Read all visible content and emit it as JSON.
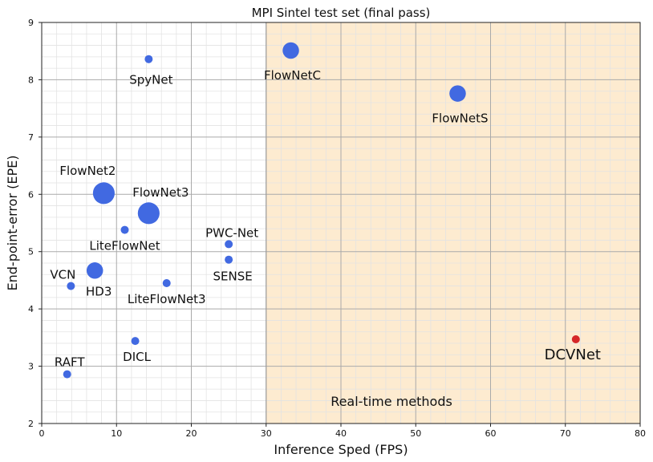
{
  "chart_data": {
    "type": "scatter",
    "title": "MPI Sintel test set (final pass)",
    "xlabel": "Inference Sped (FPS)",
    "ylabel": "End-point-error (EPE)",
    "xlim": [
      0,
      80
    ],
    "ylim": [
      2,
      9
    ],
    "xticks": [
      0,
      10,
      20,
      30,
      40,
      50,
      60,
      70,
      80
    ],
    "yticks": [
      2,
      3,
      4,
      5,
      6,
      7,
      8,
      9
    ],
    "grid": true,
    "region": {
      "x_from": 30,
      "x_to": 80,
      "label": "Real-time methods",
      "color": "#fdebd0"
    },
    "point_color": "#4169e1",
    "highlight_color": "#d62728",
    "points": [
      {
        "name": "SpyNet",
        "x": 14.3,
        "y": 8.36,
        "size": 1.0
      },
      {
        "name": "FlowNetC",
        "x": 33.3,
        "y": 8.51,
        "size": 2.0
      },
      {
        "name": "FlowNetS",
        "x": 55.6,
        "y": 7.76,
        "size": 2.0
      },
      {
        "name": "FlowNet2",
        "x": 8.3,
        "y": 6.02,
        "size": 3.5
      },
      {
        "name": "FlowNet3",
        "x": 14.3,
        "y": 5.67,
        "size": 3.5
      },
      {
        "name": "LiteFlowNet",
        "x": 11.1,
        "y": 5.38,
        "size": 1.0
      },
      {
        "name": "PWC-Net",
        "x": 25.0,
        "y": 5.13,
        "size": 1.0
      },
      {
        "name": "SENSE",
        "x": 25.0,
        "y": 4.86,
        "size": 1.0
      },
      {
        "name": "VCN",
        "x": 3.9,
        "y": 4.4,
        "size": 1.0
      },
      {
        "name": "HD3",
        "x": 7.1,
        "y": 4.67,
        "size": 2.0
      },
      {
        "name": "LiteFlowNet3",
        "x": 16.7,
        "y": 4.45,
        "size": 1.0
      },
      {
        "name": "DICL",
        "x": 12.5,
        "y": 3.44,
        "size": 1.0
      },
      {
        "name": "RAFT",
        "x": 3.4,
        "y": 2.86,
        "size": 1.0
      },
      {
        "name": "DCVNet",
        "x": 71.4,
        "y": 3.47,
        "size": 1.0,
        "highlight": true
      }
    ]
  }
}
